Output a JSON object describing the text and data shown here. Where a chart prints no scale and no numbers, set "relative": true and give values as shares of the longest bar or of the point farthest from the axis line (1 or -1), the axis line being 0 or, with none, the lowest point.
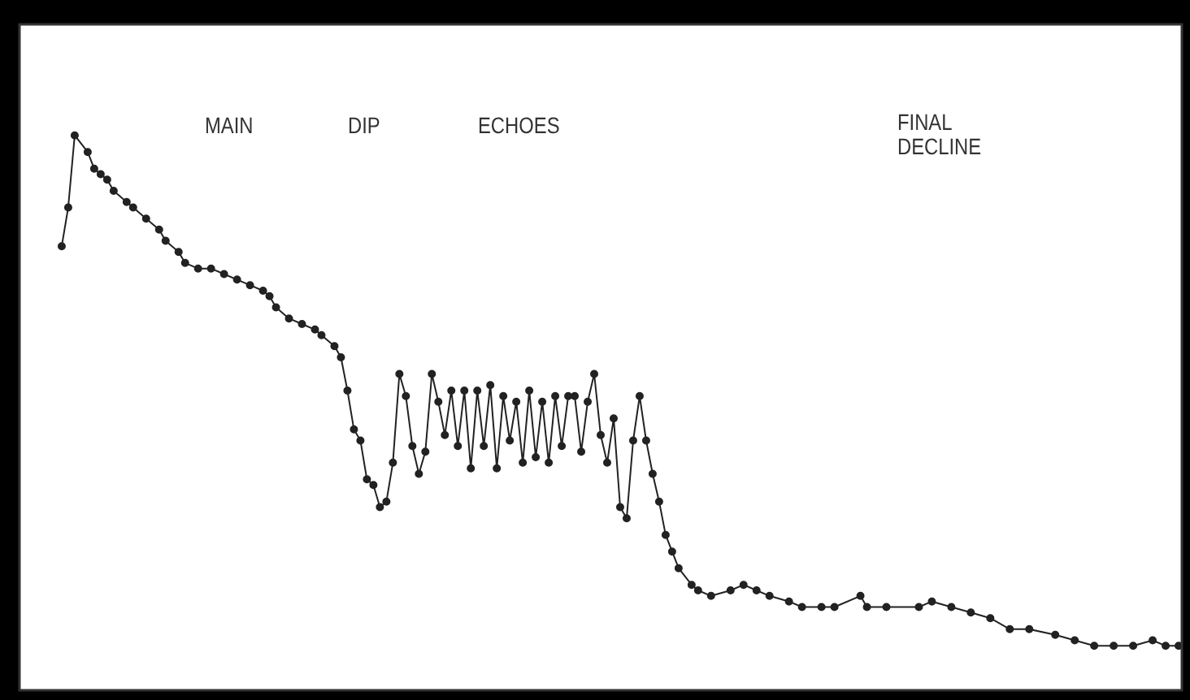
{
  "chart_data": {
    "type": "line",
    "relative": true,
    "marker": "circle",
    "annotations": [
      "MAIN",
      "DIP",
      "ECHOES",
      "FINAL DECLINE"
    ],
    "categories": [
      null,
      null,
      null,
      null,
      null,
      null,
      null,
      null,
      null,
      null,
      null,
      null,
      null,
      null,
      null,
      null,
      null,
      null,
      null,
      null,
      null,
      null,
      null,
      null,
      null,
      null,
      null,
      null,
      null,
      null,
      null,
      null,
      null,
      null,
      null,
      null,
      null,
      null,
      null,
      null,
      null,
      null,
      null,
      null,
      null,
      null,
      null,
      null,
      null,
      null,
      null,
      null,
      null,
      null,
      null,
      null,
      null,
      null,
      null,
      null,
      null,
      null,
      null,
      null,
      null,
      null,
      null,
      null,
      null,
      null,
      null,
      null,
      null,
      null,
      null,
      null,
      null,
      null,
      null,
      null,
      null,
      null,
      null,
      null,
      null,
      null,
      null,
      null,
      null,
      null,
      null,
      null,
      null,
      null,
      null,
      null,
      null,
      null,
      null,
      null,
      null,
      null,
      null,
      null,
      null,
      null,
      null,
      null,
      null,
      null,
      null,
      null,
      null,
      null,
      null,
      null,
      null,
      null,
      null,
      null,
      null,
      null,
      null,
      null,
      null,
      null,
      null,
      null,
      null,
      null,
      null,
      null,
      null,
      null,
      null,
      null,
      null,
      null,
      null,
      null,
      null,
      null,
      null,
      null,
      null,
      null,
      null,
      null,
      null,
      null,
      null,
      null,
      null,
      null,
      null,
      null,
      null,
      null,
      null,
      null,
      null,
      null,
      null,
      null,
      null,
      null,
      null,
      null,
      null,
      null,
      null,
      null,
      null,
      null,
      null,
      null,
      null,
      null,
      null
    ],
    "series": [
      {
        "color": "#222222",
        "values": [
          null,
          null,
          null,
          null,
          null,
          null,
          0.8,
          0.87,
          1.0,
          null,
          0.97,
          0.94,
          0.93,
          0.92,
          0.9,
          null,
          0.88,
          0.87,
          null,
          0.85,
          null,
          0.83,
          0.81,
          null,
          0.79,
          0.77,
          null,
          0.76,
          null,
          0.76,
          null,
          0.75,
          null,
          0.74,
          null,
          0.73,
          null,
          0.72,
          0.71,
          0.69,
          null,
          0.67,
          null,
          0.66,
          null,
          0.65,
          0.64,
          null,
          0.62,
          0.6,
          0.54,
          0.47,
          0.45,
          0.38,
          0.37,
          0.33,
          0.34,
          0.41,
          0.57,
          0.53,
          0.44,
          0.39,
          0.43,
          0.57,
          0.52,
          0.46,
          0.54,
          0.44,
          0.54,
          0.4,
          0.54,
          0.44,
          0.55,
          0.4,
          0.53,
          0.45,
          0.52,
          0.41,
          0.54,
          0.42,
          0.52,
          0.41,
          0.53,
          0.44,
          0.53,
          0.53,
          0.43,
          0.52,
          0.57,
          0.46,
          0.41,
          0.49,
          0.33,
          0.31,
          0.45,
          0.53,
          0.45,
          0.39,
          0.34,
          0.28,
          0.25,
          0.22,
          null,
          0.19,
          0.18,
          null,
          0.17,
          null,
          null,
          0.18,
          null,
          0.19,
          null,
          0.18,
          null,
          0.17,
          null,
          null,
          0.16,
          null,
          0.15,
          null,
          null,
          0.15,
          null,
          0.15,
          null,
          null,
          null,
          0.17,
          0.15,
          null,
          null,
          0.15,
          null,
          null,
          null,
          null,
          0.15,
          null,
          0.16,
          null,
          null,
          0.15,
          null,
          null,
          0.14,
          null,
          null,
          0.13,
          null,
          null,
          0.11,
          null,
          null,
          0.11,
          null,
          null,
          null,
          0.1,
          null,
          null,
          0.09,
          null,
          null,
          0.08,
          null,
          null,
          0.08,
          null,
          null,
          0.08,
          null,
          null,
          0.09,
          null,
          0.08,
          null,
          0.08
        ]
      }
    ]
  }
}
